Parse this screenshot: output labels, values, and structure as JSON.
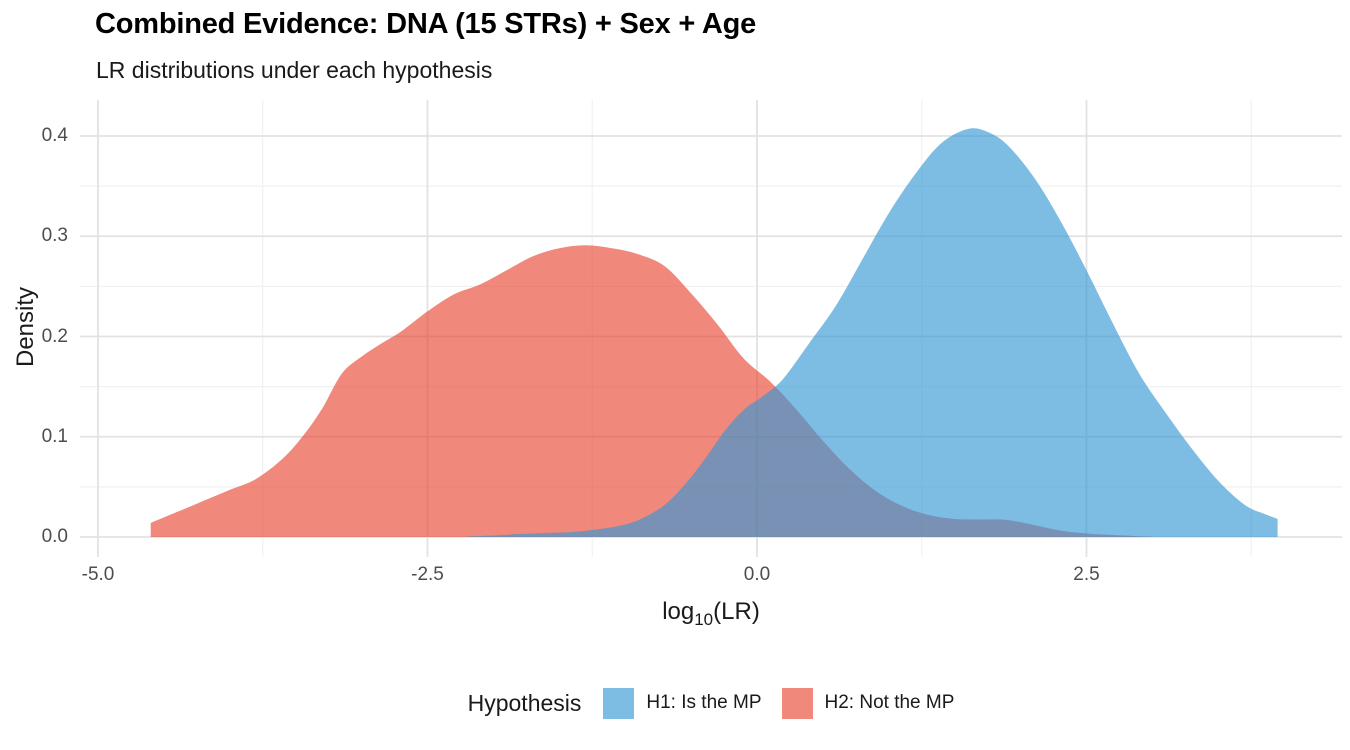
{
  "chart_data": {
    "type": "area",
    "title": "Combined Evidence: DNA (15 STRs) + Sex + Age",
    "subtitle": "LR distributions under each hypothesis",
    "ylabel": "Density",
    "xlabel_parts": {
      "pre": "log",
      "sub": "10",
      "post": "(LR)"
    },
    "xlim": [
      -5.14,
      4.44
    ],
    "ylim": [
      0,
      0.436
    ],
    "x_axis": {
      "major_ticks": [
        {
          "label": "-5.0",
          "value": -5.0
        },
        {
          "label": "-2.5",
          "value": -2.5
        },
        {
          "label": "0.0",
          "value": 0.0
        },
        {
          "label": "2.5",
          "value": 2.5
        }
      ],
      "minor_ticks": [
        -3.75,
        -1.25,
        1.25,
        3.75
      ]
    },
    "y_axis": {
      "major_ticks": [
        {
          "label": "0.0",
          "value": 0.0
        },
        {
          "label": "0.1",
          "value": 0.1
        },
        {
          "label": "0.2",
          "value": 0.2
        },
        {
          "label": "0.3",
          "value": 0.3
        },
        {
          "label": "0.4",
          "value": 0.4
        }
      ],
      "minor_ticks": [
        0.05,
        0.15,
        0.25,
        0.35
      ]
    },
    "grid": {
      "on": true,
      "major_color": "#e2e2e2",
      "minor_color": "#f1f1f1"
    },
    "legend": {
      "title": "Hypothesis",
      "position": "bottom"
    },
    "series": [
      {
        "name": "H1: Is the MP",
        "fill": "#3196d4",
        "opacity": 0.63,
        "shown_color": "#7dbde4",
        "points": [
          [
            -2.2,
            0.0005
          ],
          [
            -2.0,
            0.0015
          ],
          [
            -1.8,
            0.003
          ],
          [
            -1.6,
            0.004
          ],
          [
            -1.4,
            0.005
          ],
          [
            -1.25,
            0.007
          ],
          [
            -1.05,
            0.011
          ],
          [
            -0.88,
            0.018
          ],
          [
            -0.7,
            0.032
          ],
          [
            -0.55,
            0.052
          ],
          [
            -0.4,
            0.077
          ],
          [
            -0.25,
            0.105
          ],
          [
            -0.1,
            0.127
          ],
          [
            0.05,
            0.141
          ],
          [
            0.2,
            0.158
          ],
          [
            0.4,
            0.194
          ],
          [
            0.6,
            0.231
          ],
          [
            0.8,
            0.277
          ],
          [
            1.0,
            0.323
          ],
          [
            1.2,
            0.362
          ],
          [
            1.4,
            0.393
          ],
          [
            1.6,
            0.407
          ],
          [
            1.75,
            0.404
          ],
          [
            1.9,
            0.391
          ],
          [
            2.1,
            0.359
          ],
          [
            2.3,
            0.316
          ],
          [
            2.5,
            0.266
          ],
          [
            2.7,
            0.213
          ],
          [
            2.9,
            0.163
          ],
          [
            3.1,
            0.124
          ],
          [
            3.3,
            0.088
          ],
          [
            3.5,
            0.056
          ],
          [
            3.7,
            0.032
          ],
          [
            3.85,
            0.023
          ],
          [
            3.95,
            0.018
          ]
        ]
      },
      {
        "name": "H2: Not the MP",
        "fill": "#e74430",
        "opacity": 0.63,
        "shown_color": "#ef9083",
        "points": [
          [
            -4.6,
            0.014
          ],
          [
            -4.4,
            0.025
          ],
          [
            -4.2,
            0.036
          ],
          [
            -4.0,
            0.047
          ],
          [
            -3.8,
            0.058
          ],
          [
            -3.6,
            0.078
          ],
          [
            -3.45,
            0.1
          ],
          [
            -3.3,
            0.128
          ],
          [
            -3.15,
            0.163
          ],
          [
            -3.0,
            0.18
          ],
          [
            -2.85,
            0.193
          ],
          [
            -2.7,
            0.205
          ],
          [
            -2.5,
            0.225
          ],
          [
            -2.3,
            0.242
          ],
          [
            -2.1,
            0.252
          ],
          [
            -1.9,
            0.266
          ],
          [
            -1.7,
            0.28
          ],
          [
            -1.5,
            0.288
          ],
          [
            -1.3,
            0.291
          ],
          [
            -1.1,
            0.288
          ],
          [
            -0.9,
            0.282
          ],
          [
            -0.7,
            0.27
          ],
          [
            -0.5,
            0.243
          ],
          [
            -0.3,
            0.212
          ],
          [
            -0.1,
            0.178
          ],
          [
            0.1,
            0.155
          ],
          [
            0.3,
            0.127
          ],
          [
            0.5,
            0.096
          ],
          [
            0.7,
            0.068
          ],
          [
            0.9,
            0.046
          ],
          [
            1.1,
            0.031
          ],
          [
            1.3,
            0.022
          ],
          [
            1.5,
            0.018
          ],
          [
            1.7,
            0.0175
          ],
          [
            1.9,
            0.017
          ],
          [
            2.1,
            0.012
          ],
          [
            2.3,
            0.0065
          ],
          [
            2.5,
            0.0035
          ],
          [
            2.7,
            0.002
          ],
          [
            2.9,
            0.0008
          ],
          [
            3.0,
            0.0002
          ]
        ]
      }
    ]
  }
}
